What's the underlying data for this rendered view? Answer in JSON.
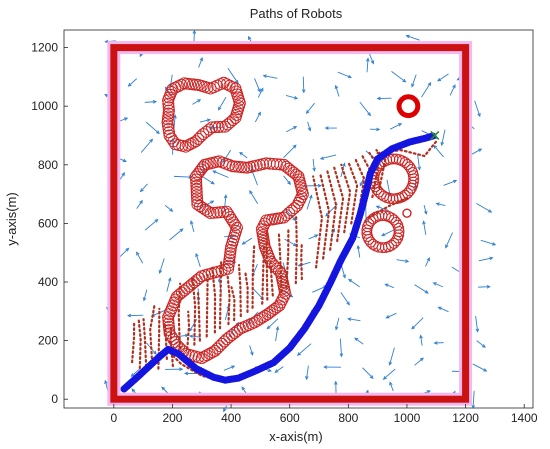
{
  "chart_data": {
    "type": "scatter",
    "title": "Paths of Robots",
    "xlabel": "x-axis(m)",
    "ylabel": "y-axis(m)",
    "xlim": [
      -170,
      1430
    ],
    "ylim": [
      -30,
      1260
    ],
    "xticks": [
      "0",
      "200",
      "400",
      "600",
      "800",
      "1000",
      "1200",
      "1400"
    ],
    "xtick_values": [
      0,
      200,
      400,
      600,
      800,
      1000,
      1200,
      1400
    ],
    "yticks": [
      "0",
      "200",
      "400",
      "600",
      "800",
      "1000",
      "1200"
    ],
    "ytick_values": [
      0,
      200,
      400,
      600,
      800,
      1000,
      1200
    ],
    "grid": false,
    "colors": {
      "boundary": "#cc1111",
      "boundary_glow": "#f5b8ee",
      "obstacle": "#cc2222",
      "robot_path": "#1515e0",
      "other_paths": "#b03020",
      "vector_field": "#2f7fd0",
      "goal": "#dd0000",
      "goal_marker": "#2a8a2a"
    },
    "boundary": {
      "x": [
        0,
        1200
      ],
      "y": [
        0,
        1200
      ]
    },
    "obstacle_chains": [
      {
        "name": "upper-left blob",
        "points": [
          [
            185,
            1020
          ],
          [
            200,
            1058
          ],
          [
            240,
            1078
          ],
          [
            290,
            1072
          ],
          [
            330,
            1060
          ],
          [
            375,
            1080
          ],
          [
            415,
            1060
          ],
          [
            430,
            1010
          ],
          [
            415,
            960
          ],
          [
            380,
            930
          ],
          [
            335,
            928
          ],
          [
            305,
            905
          ],
          [
            280,
            880
          ],
          [
            245,
            862
          ],
          [
            210,
            870
          ],
          [
            190,
            900
          ],
          [
            183,
            945
          ],
          [
            188,
            985
          ]
        ]
      },
      {
        "name": "center blob",
        "points": [
          [
            280,
            760
          ],
          [
            285,
            665
          ],
          [
            330,
            635
          ],
          [
            385,
            640
          ],
          [
            420,
            585
          ],
          [
            400,
            520
          ],
          [
            390,
            445
          ],
          [
            300,
            420
          ],
          [
            215,
            350
          ],
          [
            185,
            280
          ],
          [
            190,
            225
          ],
          [
            215,
            185
          ],
          [
            245,
            155
          ],
          [
            300,
            140
          ],
          [
            345,
            165
          ],
          [
            385,
            205
          ],
          [
            430,
            240
          ],
          [
            480,
            262
          ],
          [
            525,
            290
          ],
          [
            565,
            320
          ],
          [
            585,
            360
          ],
          [
            570,
            430
          ],
          [
            535,
            470
          ],
          [
            515,
            520
          ],
          [
            505,
            580
          ],
          [
            520,
            610
          ],
          [
            580,
            620
          ],
          [
            625,
            660
          ],
          [
            645,
            700
          ],
          [
            630,
            760
          ],
          [
            580,
            800
          ],
          [
            520,
            805
          ],
          [
            455,
            790
          ],
          [
            405,
            795
          ],
          [
            360,
            812
          ],
          [
            310,
            800
          ]
        ]
      }
    ],
    "obstacle_circles": [
      {
        "cx": 955,
        "cy": 752,
        "r": 68
      },
      {
        "cx": 918,
        "cy": 572,
        "r": 55
      },
      {
        "cx": 1005,
        "cy": 1000,
        "r": 32
      }
    ],
    "robot_path": [
      [
        35,
        35
      ],
      [
        80,
        75
      ],
      [
        150,
        140
      ],
      [
        185,
        170
      ],
      [
        220,
        155
      ],
      [
        280,
        105
      ],
      [
        340,
        75
      ],
      [
        380,
        65
      ],
      [
        425,
        72
      ],
      [
        480,
        95
      ],
      [
        545,
        125
      ],
      [
        600,
        175
      ],
      [
        650,
        240
      ],
      [
        700,
        320
      ],
      [
        740,
        400
      ],
      [
        775,
        475
      ],
      [
        815,
        550
      ],
      [
        840,
        630
      ],
      [
        860,
        705
      ],
      [
        875,
        770
      ],
      [
        900,
        820
      ],
      [
        950,
        855
      ],
      [
        1010,
        878
      ],
      [
        1060,
        890
      ],
      [
        1095,
        900
      ]
    ],
    "goal": {
      "x": 1095,
      "y": 900,
      "marker": "x"
    },
    "legend": "none"
  }
}
